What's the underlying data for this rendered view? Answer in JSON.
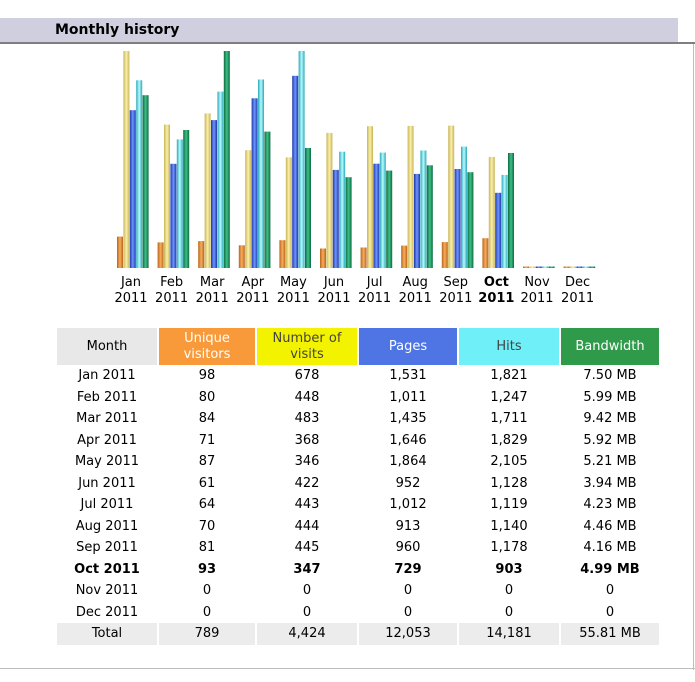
{
  "section": {
    "title": "Monthly history"
  },
  "colors": {
    "unique_visitors": "#f89a3a",
    "visits": "#f3f300",
    "pages": "#4f74e3",
    "hits": "#6ff0f8",
    "bandwidth": "#2f9b4a",
    "header_bar": "#cfcfe0"
  },
  "chart_data": {
    "type": "bar",
    "title": "Monthly history",
    "categories": [
      "Jan 2011",
      "Feb 2011",
      "Mar 2011",
      "Apr 2011",
      "May 2011",
      "Jun 2011",
      "Jul 2011",
      "Aug 2011",
      "Sep 2011",
      "Oct 2011",
      "Nov 2011",
      "Dec 2011"
    ],
    "month_labels": [
      "Jan",
      "Feb",
      "Mar",
      "Apr",
      "May",
      "Jun",
      "Jul",
      "Aug",
      "Sep",
      "Oct",
      "Nov",
      "Dec"
    ],
    "year_labels": [
      "2011",
      "2011",
      "2011",
      "2011",
      "2011",
      "2011",
      "2011",
      "2011",
      "2011",
      "2011",
      "2011",
      "2011"
    ],
    "current_index": 9,
    "series": [
      {
        "name": "Unique visitors",
        "values": [
          98,
          80,
          84,
          71,
          87,
          61,
          64,
          70,
          81,
          93,
          0,
          0
        ]
      },
      {
        "name": "Number of visits",
        "values": [
          678,
          448,
          483,
          368,
          346,
          422,
          443,
          444,
          445,
          347,
          0,
          0
        ]
      },
      {
        "name": "Pages",
        "values": [
          1531,
          1011,
          1435,
          1646,
          1864,
          952,
          1012,
          913,
          960,
          729,
          0,
          0
        ]
      },
      {
        "name": "Hits",
        "values": [
          1821,
          1247,
          1711,
          1829,
          2105,
          1128,
          1119,
          1140,
          1178,
          903,
          0,
          0
        ]
      },
      {
        "name": "Bandwidth (MB)",
        "values": [
          7.5,
          5.99,
          9.42,
          5.92,
          5.21,
          3.94,
          4.23,
          4.46,
          4.16,
          4.99,
          0,
          0
        ]
      }
    ],
    "scale_groups": [
      [
        0,
        1
      ],
      [
        2,
        3
      ],
      [
        4
      ]
    ]
  },
  "table": {
    "headers": {
      "month": "Month",
      "unique_visitors": "Unique visitors",
      "visits": "Number of visits",
      "pages": "Pages",
      "hits": "Hits",
      "bandwidth": "Bandwidth"
    },
    "rows": [
      [
        "Jan 2011",
        "98",
        "678",
        "1,531",
        "1,821",
        "7.50 MB"
      ],
      [
        "Feb 2011",
        "80",
        "448",
        "1,011",
        "1,247",
        "5.99 MB"
      ],
      [
        "Mar 2011",
        "84",
        "483",
        "1,435",
        "1,711",
        "9.42 MB"
      ],
      [
        "Apr 2011",
        "71",
        "368",
        "1,646",
        "1,829",
        "5.92 MB"
      ],
      [
        "May 2011",
        "87",
        "346",
        "1,864",
        "2,105",
        "5.21 MB"
      ],
      [
        "Jun 2011",
        "61",
        "422",
        "952",
        "1,128",
        "3.94 MB"
      ],
      [
        "Jul 2011",
        "64",
        "443",
        "1,012",
        "1,119",
        "4.23 MB"
      ],
      [
        "Aug 2011",
        "70",
        "444",
        "913",
        "1,140",
        "4.46 MB"
      ],
      [
        "Sep 2011",
        "81",
        "445",
        "960",
        "1,178",
        "4.16 MB"
      ],
      [
        "Oct 2011",
        "93",
        "347",
        "729",
        "903",
        "4.99 MB"
      ],
      [
        "Nov 2011",
        "0",
        "0",
        "0",
        "0",
        "0"
      ],
      [
        "Dec 2011",
        "0",
        "0",
        "0",
        "0",
        "0"
      ]
    ],
    "total": [
      "Total",
      "789",
      "4,424",
      "12,053",
      "14,181",
      "55.81 MB"
    ]
  }
}
